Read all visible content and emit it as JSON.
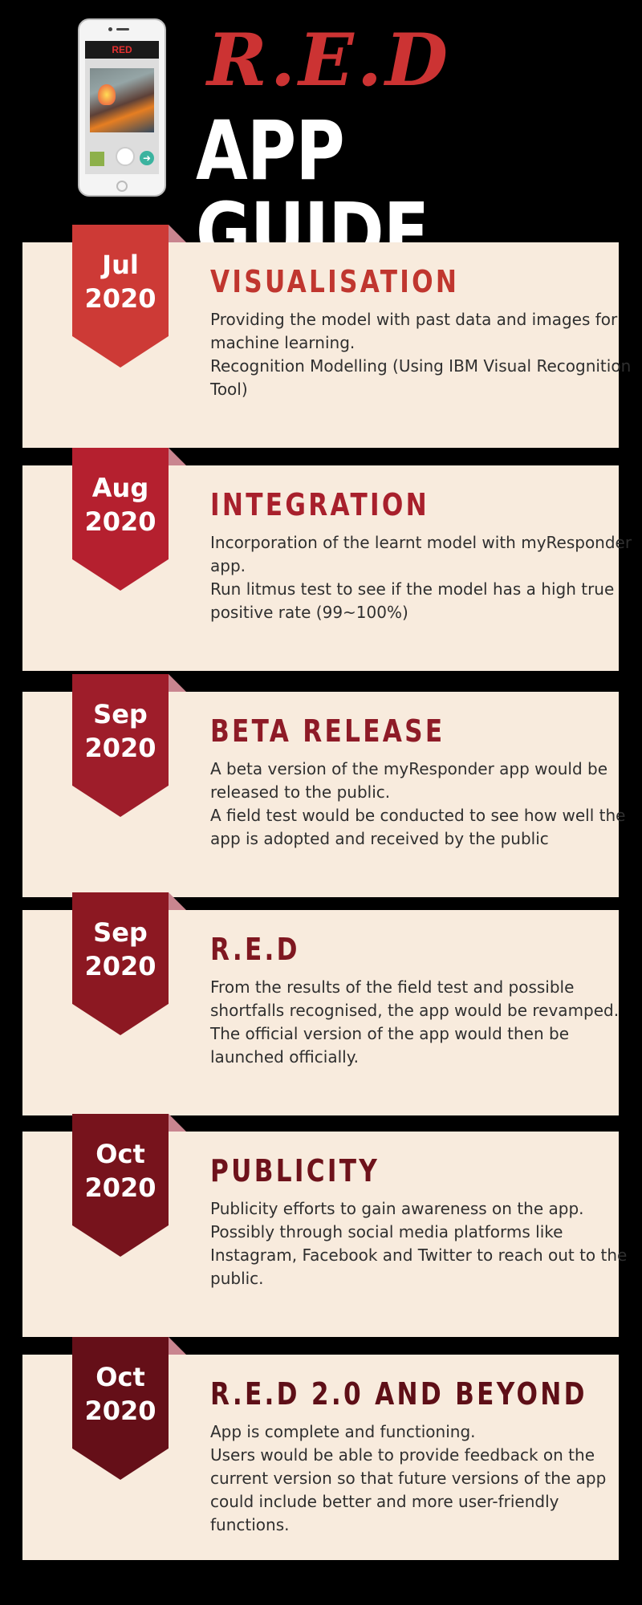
{
  "header": {
    "phone_app_label": "RED",
    "title_red": "R.E.D",
    "title_main": "APP GUIDE",
    "phone_icons": [
      "fire-photo-icon",
      "thumbnail-icon",
      "shutter-button-icon",
      "arrow-next-icon"
    ]
  },
  "milestones": [
    {
      "month": "Jul",
      "year": "2020",
      "title": "VISUALISATION",
      "color": "#cd3a36",
      "title_color": "#c0362f",
      "lines": [
        "Providing the model with past data and images for machine learning.",
        "Recognition Modelling (Using IBM Visual Recognition Tool)"
      ]
    },
    {
      "month": "Aug",
      "year": "2020",
      "title": "INTEGRATION",
      "color": "#b5202f",
      "title_color": "#a8202c",
      "lines": [
        "Incorporation of the learnt model with myResponder app.",
        "Run litmus test to see if the model has a high true positive rate (99~100%)"
      ]
    },
    {
      "month": "Sep",
      "year": "2020",
      "title": "BETA RELEASE",
      "color": "#9e1d2a",
      "title_color": "#8e1b27",
      "lines": [
        "A beta version of the myResponder app would be released to the public.",
        "A field test would be conducted to see how well the app is adopted and received by the public"
      ]
    },
    {
      "month": "Sep",
      "year": "2020",
      "title": "R.E.D",
      "color": "#8c1822",
      "title_color": "#7f1720",
      "lines": [
        "From the results of the field test and possible shortfalls recognised, the app would be revamped.",
        "The official version of the app would then be launched officially."
      ]
    },
    {
      "month": "Oct",
      "year": "2020",
      "title": "PUBLICITY",
      "color": "#77131c",
      "title_color": "#6e121b",
      "lines": [
        "Publicity efforts to gain awareness on the app. Possibly through social media platforms like Instagram, Facebook and Twitter to reach out to the public."
      ]
    },
    {
      "month": "Oct",
      "year": "2020",
      "title": "R.E.D 2.0 AND BEYOND",
      "color": "#650f18",
      "title_color": "#5e0f17",
      "lines": [
        "App is complete and functioning.",
        "Users would be able to provide feedback on the current version so that future versions of the app could include better and more user-friendly functions."
      ]
    }
  ]
}
